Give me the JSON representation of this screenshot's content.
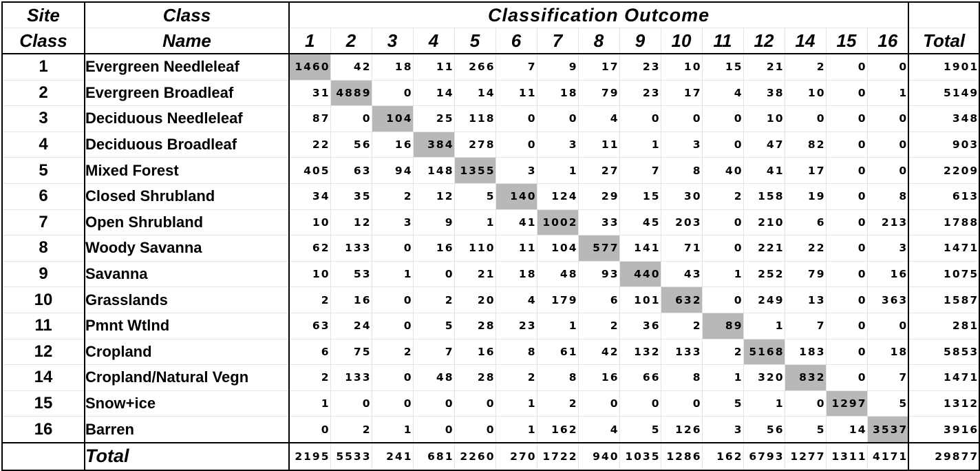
{
  "header": {
    "site_class_line1": "Site",
    "site_class_line2": "Class",
    "class_name_line1": "Class",
    "class_name_line2": "Name",
    "outcome_title": "Classification Outcome",
    "total_label": "Total"
  },
  "columns": [
    "1",
    "2",
    "3",
    "4",
    "5",
    "6",
    "7",
    "8",
    "9",
    "10",
    "11",
    "12",
    "14",
    "15",
    "16"
  ],
  "rows": [
    {
      "site": "1",
      "name": "Evergreen Needleleaf",
      "values": [
        "1460",
        "42",
        "18",
        "11",
        "266",
        "7",
        "9",
        "17",
        "23",
        "10",
        "15",
        "21",
        "2",
        "0",
        "0"
      ],
      "total": "1901"
    },
    {
      "site": "2",
      "name": "Evergreen Broadleaf",
      "values": [
        "31",
        "4889",
        "0",
        "14",
        "14",
        "11",
        "18",
        "79",
        "23",
        "17",
        "4",
        "38",
        "10",
        "0",
        "1"
      ],
      "total": "5149"
    },
    {
      "site": "3",
      "name": "Deciduous Needleleaf",
      "values": [
        "87",
        "0",
        "104",
        "25",
        "118",
        "0",
        "0",
        "4",
        "0",
        "0",
        "0",
        "10",
        "0",
        "0",
        "0"
      ],
      "total": "348"
    },
    {
      "site": "4",
      "name": "Deciduous Broadleaf",
      "values": [
        "22",
        "56",
        "16",
        "384",
        "278",
        "0",
        "3",
        "11",
        "1",
        "3",
        "0",
        "47",
        "82",
        "0",
        "0"
      ],
      "total": "903"
    },
    {
      "site": "5",
      "name": "Mixed Forest",
      "values": [
        "405",
        "63",
        "94",
        "148",
        "1355",
        "3",
        "1",
        "27",
        "7",
        "8",
        "40",
        "41",
        "17",
        "0",
        "0"
      ],
      "total": "2209"
    },
    {
      "site": "6",
      "name": "Closed Shrubland",
      "values": [
        "34",
        "35",
        "2",
        "12",
        "5",
        "140",
        "124",
        "29",
        "15",
        "30",
        "2",
        "158",
        "19",
        "0",
        "8"
      ],
      "total": "613"
    },
    {
      "site": "7",
      "name": "Open Shrubland",
      "values": [
        "10",
        "12",
        "3",
        "9",
        "1",
        "41",
        "1002",
        "33",
        "45",
        "203",
        "0",
        "210",
        "6",
        "0",
        "213"
      ],
      "total": "1788"
    },
    {
      "site": "8",
      "name": "Woody Savanna",
      "values": [
        "62",
        "133",
        "0",
        "16",
        "110",
        "11",
        "104",
        "577",
        "141",
        "71",
        "0",
        "221",
        "22",
        "0",
        "3"
      ],
      "total": "1471"
    },
    {
      "site": "9",
      "name": "Savanna",
      "values": [
        "10",
        "53",
        "1",
        "0",
        "21",
        "18",
        "48",
        "93",
        "440",
        "43",
        "1",
        "252",
        "79",
        "0",
        "16"
      ],
      "total": "1075"
    },
    {
      "site": "10",
      "name": "Grasslands",
      "values": [
        "2",
        "16",
        "0",
        "2",
        "20",
        "4",
        "179",
        "6",
        "101",
        "632",
        "0",
        "249",
        "13",
        "0",
        "363"
      ],
      "total": "1587"
    },
    {
      "site": "11",
      "name": "Pmnt Wtlnd",
      "values": [
        "63",
        "24",
        "0",
        "5",
        "28",
        "23",
        "1",
        "2",
        "36",
        "2",
        "89",
        "1",
        "7",
        "0",
        "0"
      ],
      "total": "281"
    },
    {
      "site": "12",
      "name": "Cropland",
      "values": [
        "6",
        "75",
        "2",
        "7",
        "16",
        "8",
        "61",
        "42",
        "132",
        "133",
        "2",
        "5168",
        "183",
        "0",
        "18"
      ],
      "total": "5853"
    },
    {
      "site": "14",
      "name": "Cropland/Natural Vegn",
      "values": [
        "2",
        "133",
        "0",
        "48",
        "28",
        "2",
        "8",
        "16",
        "66",
        "8",
        "1",
        "320",
        "832",
        "0",
        "7"
      ],
      "total": "1471"
    },
    {
      "site": "15",
      "name": "Snow+ice",
      "values": [
        "1",
        "0",
        "0",
        "0",
        "0",
        "1",
        "2",
        "0",
        "0",
        "0",
        "5",
        "1",
        "0",
        "1297",
        "5"
      ],
      "total": "1312"
    },
    {
      "site": "16",
      "name": "Barren",
      "values": [
        "0",
        "2",
        "1",
        "0",
        "0",
        "1",
        "162",
        "4",
        "5",
        "126",
        "3",
        "56",
        "5",
        "14",
        "3537"
      ],
      "total": "3916"
    }
  ],
  "totals": {
    "label": "Total",
    "values": [
      "2195",
      "5533",
      "241",
      "681",
      "2260",
      "270",
      "1722",
      "940",
      "1035",
      "1286",
      "162",
      "6793",
      "1277",
      "1311",
      "4171"
    ],
    "grand_total": "29877"
  },
  "colors": {
    "diagonal": "#b8b8b8",
    "border": "#000000",
    "grid": "#e4e4e4"
  }
}
